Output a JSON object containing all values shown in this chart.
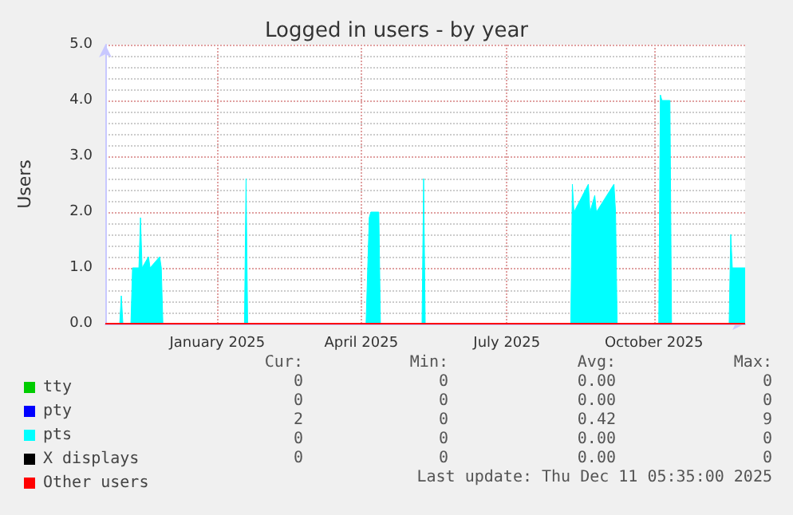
{
  "chart_data": {
    "type": "area",
    "title": "Logged in users - by year",
    "ylabel": "Users",
    "xlim": [
      "2024-11-06",
      "2025-12-11"
    ],
    "xticks": [
      {
        "value": "2025-01-15",
        "label": "January 2025"
      },
      {
        "value": "2025-04-15",
        "label": "April 2025"
      },
      {
        "value": "2025-07-15",
        "label": "July 2025"
      },
      {
        "value": "2025-10-15",
        "label": "October 2025"
      }
    ],
    "ylim": [
      0,
      5
    ],
    "yticks": [
      {
        "value": 0,
        "label": "0.0"
      },
      {
        "value": 1,
        "label": "1.0"
      },
      {
        "value": 2,
        "label": "2.0"
      },
      {
        "value": 3,
        "label": "3.0"
      },
      {
        "value": 4,
        "label": "4.0"
      },
      {
        "value": 5,
        "label": "5.0"
      }
    ],
    "grid": true,
    "legend": "bottom left",
    "series": [
      {
        "name": "tty",
        "color": "#00cc00",
        "type": "line"
      },
      {
        "name": "pty",
        "color": "#0000ff",
        "type": "line"
      },
      {
        "name": "pts",
        "color": "#00ffff",
        "x": [
          "2024-11-06",
          "2024-11-15",
          "2024-11-16",
          "2024-11-17",
          "2024-11-22",
          "2024-11-23",
          "2024-11-27",
          "2024-11-28",
          "2024-11-29",
          "2024-12-03",
          "2024-12-04",
          "2024-12-10",
          "2024-12-11",
          "2024-12-12",
          "2025-02-01",
          "2025-02-02",
          "2025-02-03",
          "2025-04-18",
          "2025-04-20",
          "2025-04-21",
          "2025-04-26",
          "2025-04-27",
          "2025-05-23",
          "2025-05-24",
          "2025-05-25",
          "2025-08-24",
          "2025-08-25",
          "2025-08-26",
          "2025-09-04",
          "2025-09-05",
          "2025-09-08",
          "2025-09-09",
          "2025-09-20",
          "2025-09-21",
          "2025-09-22",
          "2025-10-18",
          "2025-10-19",
          "2025-10-20",
          "2025-10-25",
          "2025-10-26",
          "2025-12-01",
          "2025-12-02",
          "2025-12-03",
          "2025-12-11"
        ],
        "values": [
          0,
          0,
          0.5,
          0,
          0,
          1.0,
          1.0,
          1.9,
          1.0,
          1.2,
          1.0,
          1.2,
          1.0,
          0,
          0,
          2.6,
          0,
          0,
          1.9,
          2.0,
          2.0,
          0,
          0,
          2.6,
          0,
          0,
          2.5,
          2.0,
          2.5,
          2.0,
          2.3,
          2.0,
          2.5,
          2.0,
          0,
          0,
          4.1,
          4.0,
          4.0,
          0,
          0,
          1.6,
          1.0,
          1.0
        ]
      },
      {
        "name": "X displays",
        "color": "#000000",
        "type": "line"
      },
      {
        "name": "Other users",
        "color": "#ff0000",
        "type": "line",
        "x": [
          "2024-11-06",
          "2025-12-11"
        ],
        "values": [
          0,
          0
        ]
      }
    ],
    "annotations": [
      "Cur:",
      "Min:",
      "Avg:",
      "Max:",
      "0",
      "0",
      "0.00",
      "0",
      "0",
      "0",
      "0.00",
      "0",
      "2",
      "0",
      "0.42",
      "9",
      "0",
      "0",
      "0.00",
      "0",
      "0",
      "0",
      "0.00",
      "0",
      "Last update: Thu Dec 11 05:35:00 2025"
    ]
  }
}
